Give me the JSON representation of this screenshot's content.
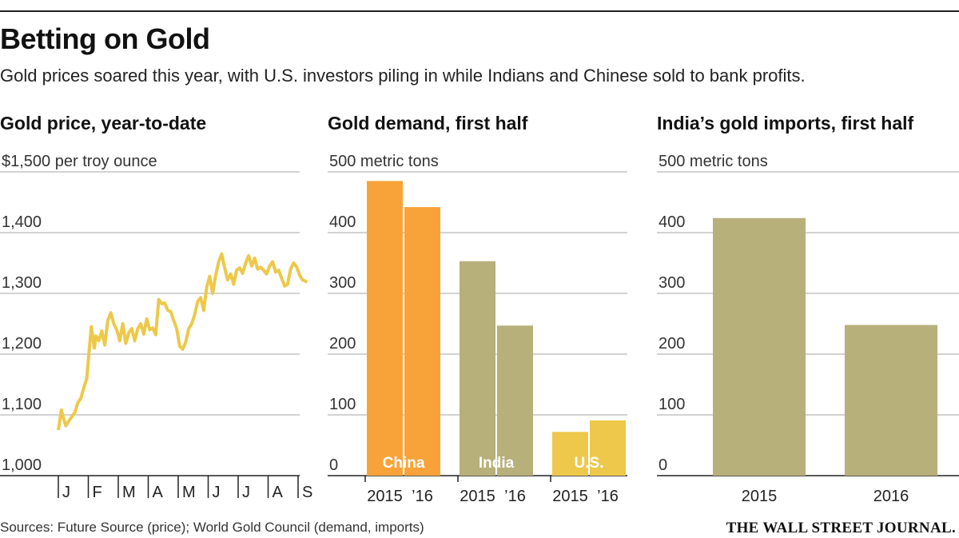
{
  "header": {
    "title": "Betting on Gold",
    "subtitle": "Gold prices soared this year, with U.S. investors piling in while Indians and Chinese sold to bank profits."
  },
  "footer": {
    "sources": "Sources: Future Source (price); World Gold Council (demand, imports)",
    "brand": "THE WALL STREET JOURNAL."
  },
  "colors": {
    "china": "#F8A33A",
    "india": "#B8B07A",
    "us": "#EDC84A",
    "price_line": "#EDC84A"
  },
  "chart_data": [
    {
      "type": "line",
      "title": "Gold price, year-to-date",
      "ylabel": "$1,500 per troy ounce",
      "ylim": [
        1000,
        1500
      ],
      "yticks": [
        1000,
        1100,
        1200,
        1300,
        1400,
        1500
      ],
      "ytick_labels": [
        "1,000",
        "1,100",
        "1,200",
        "1,300",
        "1,400",
        "$1,500 per troy ounce"
      ],
      "xtick_labels": [
        "J",
        "F",
        "M",
        "A",
        "M",
        "J",
        "J",
        "A",
        "S"
      ],
      "x_unit": "month (0 = Jan 1)",
      "x": [
        0.0,
        0.1,
        0.15,
        0.25,
        0.35,
        0.45,
        0.55,
        0.65,
        0.75,
        0.85,
        0.95,
        1.0,
        1.1,
        1.2,
        1.25,
        1.35,
        1.45,
        1.55,
        1.65,
        1.75,
        1.85,
        1.95,
        2.05,
        2.15,
        2.25,
        2.35,
        2.45,
        2.55,
        2.65,
        2.75,
        2.85,
        2.95,
        3.05,
        3.15,
        3.25,
        3.35,
        3.45,
        3.55,
        3.65,
        3.75,
        3.85,
        3.95,
        4.05,
        4.15,
        4.25,
        4.35,
        4.45,
        4.55,
        4.65,
        4.75,
        4.85,
        4.95,
        5.05,
        5.15,
        5.25,
        5.35,
        5.45,
        5.55,
        5.65,
        5.75,
        5.85,
        5.95,
        6.05,
        6.15,
        6.25,
        6.35,
        6.45,
        6.55,
        6.65,
        6.75,
        6.85,
        6.95,
        7.05,
        7.15,
        7.25,
        7.35,
        7.45,
        7.55,
        7.65,
        7.75,
        7.85,
        7.95,
        8.05,
        8.15,
        8.25,
        8.3
      ],
      "values": [
        1075,
        1108,
        1098,
        1082,
        1090,
        1097,
        1104,
        1120,
        1127,
        1145,
        1160,
        1190,
        1245,
        1210,
        1230,
        1222,
        1238,
        1215,
        1255,
        1268,
        1250,
        1240,
        1222,
        1250,
        1218,
        1235,
        1242,
        1222,
        1242,
        1250,
        1233,
        1258,
        1240,
        1243,
        1232,
        1290,
        1283,
        1284,
        1272,
        1270,
        1255,
        1242,
        1213,
        1208,
        1220,
        1242,
        1250,
        1265,
        1287,
        1293,
        1272,
        1310,
        1328,
        1300,
        1330,
        1352,
        1365,
        1342,
        1322,
        1332,
        1315,
        1338,
        1342,
        1333,
        1350,
        1362,
        1345,
        1358,
        1340,
        1343,
        1338,
        1332,
        1345,
        1352,
        1335,
        1338,
        1325,
        1312,
        1315,
        1340,
        1350,
        1344,
        1330,
        1322,
        1320,
        1318
      ]
    },
    {
      "type": "bar",
      "title": "Gold demand, first half",
      "ylabel": "500 metric tons",
      "ylim": [
        0,
        500
      ],
      "yticks": [
        0,
        100,
        200,
        300,
        400,
        500
      ],
      "ytick_labels": [
        "0",
        "100",
        "200",
        "300",
        "400",
        "500 metric tons"
      ],
      "groups": [
        {
          "name": "China",
          "labels": [
            "2015",
            "’16"
          ],
          "values": [
            485,
            442
          ],
          "color_key": "china"
        },
        {
          "name": "India",
          "labels": [
            "2015",
            "’16"
          ],
          "values": [
            353,
            247
          ],
          "color_key": "india"
        },
        {
          "name": "U.S.",
          "labels": [
            "2015",
            "’16"
          ],
          "values": [
            72,
            91
          ],
          "color_key": "us"
        }
      ]
    },
    {
      "type": "bar",
      "title": "India’s gold imports, first half",
      "ylabel": "500 metric tons",
      "ylim": [
        0,
        500
      ],
      "yticks": [
        0,
        100,
        200,
        300,
        400,
        500
      ],
      "ytick_labels": [
        "0",
        "100",
        "200",
        "300",
        "400",
        "500 metric tons"
      ],
      "categories": [
        "2015",
        "2016"
      ],
      "values": [
        424,
        248
      ],
      "color_key": "india"
    }
  ]
}
